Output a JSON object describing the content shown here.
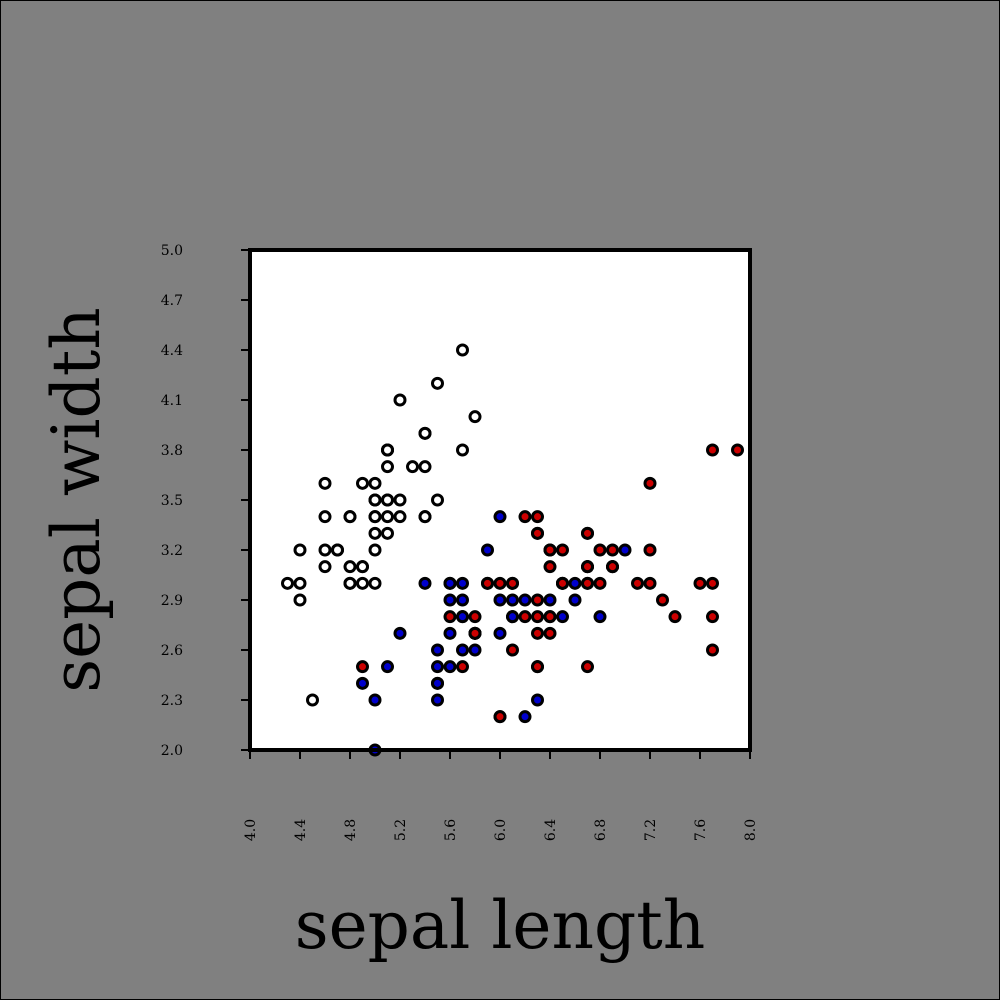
{
  "chart_data": {
    "type": "scatter",
    "xlabel": "sepal length",
    "ylabel": "sepal width",
    "xlim": [
      4.0,
      8.0
    ],
    "ylim": [
      2.0,
      5.0
    ],
    "xticks": [
      "4.0",
      "4.4",
      "4.8",
      "5.2",
      "5.6",
      "6.0",
      "6.4",
      "6.8",
      "7.2",
      "7.6",
      "8.0"
    ],
    "yticks": [
      "2.0",
      "2.3",
      "2.6",
      "2.9",
      "3.2",
      "3.5",
      "3.8",
      "4.1",
      "4.4",
      "4.7",
      "5.0"
    ],
    "grid": false,
    "background": "#808080",
    "plot_background": "#ffffff",
    "marker_edge_color": "#000000",
    "series": [
      {
        "color": "#ffffff",
        "points": [
          [
            5.1,
            3.5
          ],
          [
            4.9,
            3.0
          ],
          [
            4.7,
            3.2
          ],
          [
            4.6,
            3.1
          ],
          [
            5.0,
            3.6
          ],
          [
            5.4,
            3.9
          ],
          [
            4.6,
            3.4
          ],
          [
            5.0,
            3.4
          ],
          [
            4.4,
            2.9
          ],
          [
            4.9,
            3.1
          ],
          [
            5.4,
            3.7
          ],
          [
            4.8,
            3.4
          ],
          [
            4.8,
            3.0
          ],
          [
            4.3,
            3.0
          ],
          [
            5.8,
            4.0
          ],
          [
            5.7,
            4.4
          ],
          [
            5.4,
            3.9
          ],
          [
            5.1,
            3.5
          ],
          [
            5.7,
            3.8
          ],
          [
            5.1,
            3.8
          ],
          [
            5.4,
            3.4
          ],
          [
            5.1,
            3.7
          ],
          [
            4.6,
            3.6
          ],
          [
            5.1,
            3.3
          ],
          [
            4.8,
            3.4
          ],
          [
            5.0,
            3.0
          ],
          [
            5.0,
            3.4
          ],
          [
            5.2,
            3.5
          ],
          [
            5.2,
            3.4
          ],
          [
            4.7,
            3.2
          ],
          [
            4.8,
            3.1
          ],
          [
            5.4,
            3.4
          ],
          [
            5.2,
            4.1
          ],
          [
            5.5,
            4.2
          ],
          [
            4.9,
            3.1
          ],
          [
            5.0,
            3.2
          ],
          [
            5.5,
            3.5
          ],
          [
            4.9,
            3.6
          ],
          [
            4.4,
            3.0
          ],
          [
            5.1,
            3.4
          ],
          [
            5.0,
            3.5
          ],
          [
            4.5,
            2.3
          ],
          [
            4.4,
            3.2
          ],
          [
            5.0,
            3.5
          ],
          [
            5.1,
            3.8
          ],
          [
            4.8,
            3.0
          ],
          [
            5.1,
            3.8
          ],
          [
            4.6,
            3.2
          ],
          [
            5.3,
            3.7
          ],
          [
            5.0,
            3.3
          ]
        ]
      },
      {
        "color": "#0000cc",
        "points": [
          [
            7.0,
            3.2
          ],
          [
            6.4,
            3.2
          ],
          [
            6.9,
            3.1
          ],
          [
            5.5,
            2.3
          ],
          [
            6.5,
            2.8
          ],
          [
            5.7,
            2.8
          ],
          [
            6.3,
            3.3
          ],
          [
            4.9,
            2.4
          ],
          [
            6.6,
            2.9
          ],
          [
            5.2,
            2.7
          ],
          [
            5.0,
            2.0
          ],
          [
            5.9,
            3.0
          ],
          [
            6.0,
            2.2
          ],
          [
            6.1,
            2.9
          ],
          [
            5.6,
            2.9
          ],
          [
            6.7,
            3.1
          ],
          [
            5.6,
            3.0
          ],
          [
            5.8,
            2.7
          ],
          [
            6.2,
            2.2
          ],
          [
            5.6,
            2.5
          ],
          [
            5.9,
            3.2
          ],
          [
            6.1,
            2.8
          ],
          [
            6.3,
            2.5
          ],
          [
            6.1,
            2.8
          ],
          [
            6.4,
            2.9
          ],
          [
            6.6,
            3.0
          ],
          [
            6.8,
            2.8
          ],
          [
            6.7,
            3.0
          ],
          [
            6.0,
            2.9
          ],
          [
            5.7,
            2.6
          ],
          [
            5.5,
            2.4
          ],
          [
            5.5,
            2.4
          ],
          [
            5.8,
            2.7
          ],
          [
            6.0,
            2.7
          ],
          [
            5.4,
            3.0
          ],
          [
            6.0,
            3.4
          ],
          [
            6.7,
            3.1
          ],
          [
            6.3,
            2.3
          ],
          [
            5.6,
            3.0
          ],
          [
            5.5,
            2.5
          ],
          [
            5.5,
            2.6
          ],
          [
            6.1,
            3.0
          ],
          [
            5.8,
            2.6
          ],
          [
            5.0,
            2.3
          ],
          [
            5.6,
            2.7
          ],
          [
            5.7,
            3.0
          ],
          [
            5.7,
            2.9
          ],
          [
            6.2,
            2.9
          ],
          [
            5.1,
            2.5
          ],
          [
            5.7,
            2.8
          ]
        ]
      },
      {
        "color": "#cc0000",
        "points": [
          [
            6.3,
            3.3
          ],
          [
            5.8,
            2.7
          ],
          [
            7.1,
            3.0
          ],
          [
            6.3,
            2.9
          ],
          [
            6.5,
            3.0
          ],
          [
            7.6,
            3.0
          ],
          [
            4.9,
            2.5
          ],
          [
            7.3,
            2.9
          ],
          [
            6.7,
            2.5
          ],
          [
            7.2,
            3.6
          ],
          [
            6.5,
            3.2
          ],
          [
            6.4,
            2.7
          ],
          [
            6.8,
            3.0
          ],
          [
            5.7,
            2.5
          ],
          [
            5.8,
            2.8
          ],
          [
            6.4,
            3.2
          ],
          [
            6.5,
            3.0
          ],
          [
            7.7,
            3.8
          ],
          [
            7.7,
            2.6
          ],
          [
            6.0,
            2.2
          ],
          [
            6.9,
            3.2
          ],
          [
            5.6,
            2.8
          ],
          [
            7.7,
            2.8
          ],
          [
            6.3,
            2.7
          ],
          [
            6.7,
            3.3
          ],
          [
            7.2,
            3.2
          ],
          [
            6.2,
            2.8
          ],
          [
            6.1,
            3.0
          ],
          [
            6.4,
            2.8
          ],
          [
            7.2,
            3.0
          ],
          [
            7.4,
            2.8
          ],
          [
            7.9,
            3.8
          ],
          [
            6.4,
            2.8
          ],
          [
            6.3,
            2.8
          ],
          [
            6.1,
            2.6
          ],
          [
            7.7,
            3.0
          ],
          [
            6.3,
            3.4
          ],
          [
            6.4,
            3.1
          ],
          [
            6.0,
            3.0
          ],
          [
            6.9,
            3.1
          ],
          [
            6.7,
            3.1
          ],
          [
            6.9,
            3.1
          ],
          [
            5.8,
            2.7
          ],
          [
            6.8,
            3.2
          ],
          [
            6.7,
            3.3
          ],
          [
            6.7,
            3.0
          ],
          [
            6.3,
            2.5
          ],
          [
            6.5,
            3.0
          ],
          [
            6.2,
            3.4
          ],
          [
            5.9,
            3.0
          ]
        ]
      }
    ]
  }
}
